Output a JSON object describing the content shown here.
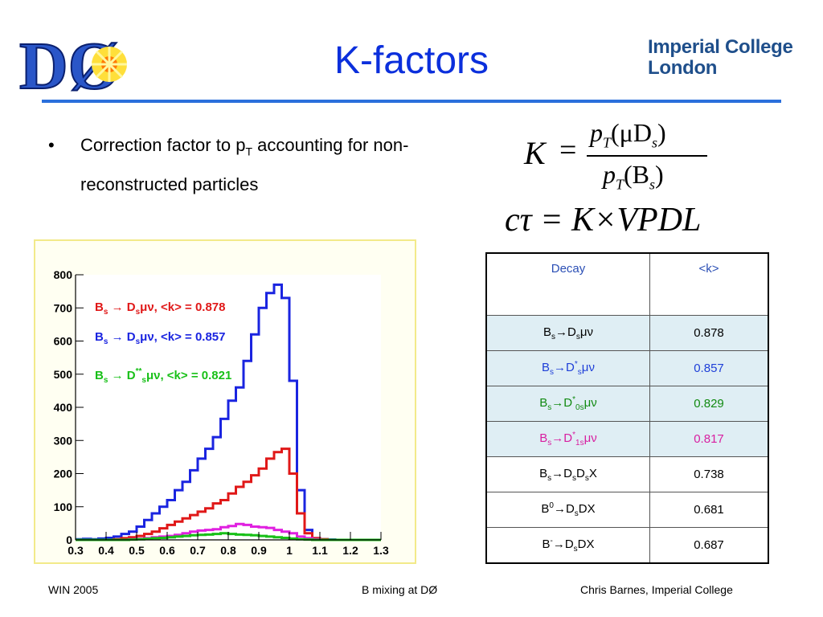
{
  "slide": {
    "title": "K-factors",
    "bullet": {
      "text_start": "Correction factor to p",
      "sub": "T",
      "text_end": " accounting for non-reconstructed particles"
    },
    "logo_left_text": "DØ",
    "logo_right": {
      "line1": "Imperial College",
      "line2": "London"
    },
    "formula1": {
      "lhs": "K",
      "equals": "=",
      "num_p": "p",
      "num_T": "T",
      "num_arg": "(μD",
      "num_s": "s",
      "num_close": ")",
      "den_p": "p",
      "den_T": "T",
      "den_arg": "(B",
      "den_s": "s",
      "den_close": ")"
    },
    "formula2": "cτ = K×VPDL"
  },
  "table": {
    "header": {
      "col1": "Decay",
      "col2": "<k>"
    },
    "rows": [
      {
        "color": "#000000",
        "bg": "band",
        "k": "0.878",
        "decay": {
          "a": "B",
          "a_sub": "s",
          "arrow": "→D",
          "d_sup": "",
          "d_sub": "s",
          "tail": "μν"
        }
      },
      {
        "color": "#1e3fd8",
        "bg": "band",
        "k": "0.857",
        "decay": {
          "a": "B",
          "a_sub": "s",
          "arrow": "→D",
          "d_sup": "*",
          "d_sub": "s",
          "tail": "μν"
        }
      },
      {
        "color": "#118a11",
        "bg": "band",
        "k": "0.829",
        "decay": {
          "a": "B",
          "a_sub": "s",
          "arrow": "→D",
          "d_sup": "*",
          "d_sub": "0s",
          "tail": "μν"
        }
      },
      {
        "color": "#d81ea0",
        "bg": "band",
        "k": "0.817",
        "decay": {
          "a": "B",
          "a_sub": "s",
          "arrow": "→D",
          "d_sup": "*",
          "d_sub": "1s",
          "tail": "μν"
        }
      },
      {
        "color": "#000000",
        "bg": "plain",
        "k": "0.738",
        "decay": {
          "a": "B",
          "a_sub": "s",
          "arrow": "→D",
          "d_sup": "",
          "d_sub": "s",
          "tail": "D",
          "tail_sub": "s",
          "tail_end": "X"
        }
      },
      {
        "color": "#000000",
        "bg": "plain",
        "k": "0.681",
        "decay": {
          "a": "B",
          "a_sup": "0",
          "arrow": "→D",
          "d_sup": "",
          "d_sub": "s",
          "tail": "DX"
        }
      },
      {
        "color": "#000000",
        "bg": "plain",
        "k": "0.687",
        "decay": {
          "a": "B",
          "a_sup": "-",
          "arrow": "→D",
          "d_sup": "",
          "d_sub": "s",
          "tail": "DX"
        }
      }
    ]
  },
  "footer": {
    "left": "WIN 2005",
    "center": "B mixing at DØ",
    "right": "Chris Barnes, Imperial College"
  },
  "chart_data": {
    "type": "line",
    "step": true,
    "xlim": [
      0.3,
      1.3
    ],
    "ylim": [
      0,
      800
    ],
    "bin_width": 0.025,
    "bin_start": 0.3,
    "x_ticks": [
      "0.3",
      "0.4",
      "0.5",
      "0.6",
      "0.7",
      "0.8",
      "0.9",
      "1",
      "1.1",
      "1.2",
      "1.3"
    ],
    "x_tick_values": [
      0.3,
      0.4,
      0.5,
      0.6,
      0.7,
      0.8,
      0.9,
      1.0,
      1.1,
      1.2,
      1.3
    ],
    "y_ticks": [
      "0",
      "100",
      "200",
      "300",
      "400",
      "500",
      "600",
      "700",
      "800"
    ],
    "y_tick_values": [
      0,
      100,
      200,
      300,
      400,
      500,
      600,
      700,
      800
    ],
    "series": [
      {
        "color": "#1a24e0",
        "legend": {
          "B": "B",
          "B_sub": "s",
          "arrow": " → D",
          "sup": "",
          "sub": "s",
          "tail": "μν, <k> = 0.857"
        },
        "values": [
          2,
          3,
          2,
          4,
          6,
          10,
          18,
          25,
          40,
          60,
          80,
          100,
          120,
          150,
          175,
          210,
          245,
          275,
          310,
          365,
          420,
          460,
          540,
          620,
          700,
          745,
          770,
          730,
          480,
          150,
          30,
          5,
          2,
          1,
          0,
          0,
          0,
          0,
          0,
          0
        ]
      },
      {
        "color": "#e01818",
        "legend": {
          "B": "B",
          "B_sub": "s",
          "arrow": " → D",
          "sup": "",
          "sub": "s",
          "tail": "μν, <k> = 0.878"
        },
        "values": [
          0,
          0,
          0,
          0,
          0,
          2,
          5,
          8,
          12,
          18,
          25,
          35,
          45,
          55,
          65,
          75,
          85,
          95,
          110,
          120,
          140,
          160,
          175,
          195,
          215,
          245,
          265,
          275,
          200,
          80,
          20,
          5,
          2,
          0,
          0,
          0,
          0,
          0,
          0,
          0
        ]
      },
      {
        "color": "#e020e0",
        "legend": null,
        "values": [
          0,
          0,
          0,
          0,
          0,
          0,
          0,
          2,
          3,
          5,
          8,
          10,
          12,
          15,
          20,
          25,
          28,
          30,
          32,
          38,
          42,
          48,
          45,
          40,
          38,
          36,
          30,
          25,
          20,
          10,
          5,
          2,
          0,
          0,
          0,
          0,
          0,
          0,
          0,
          0
        ]
      },
      {
        "color": "#18c018",
        "legend": {
          "B": "B",
          "B_sub": "s",
          "arrow": " → D",
          "sup": "**",
          "sub": "s",
          "tail": "μν, <k> = 0.821"
        },
        "values": [
          0,
          0,
          0,
          0,
          0,
          0,
          0,
          1,
          2,
          3,
          5,
          6,
          8,
          10,
          12,
          14,
          15,
          16,
          18,
          20,
          18,
          16,
          15,
          14,
          12,
          10,
          8,
          6,
          4,
          2,
          1,
          0,
          0,
          0,
          0,
          0,
          0,
          0,
          0,
          0
        ]
      }
    ]
  }
}
